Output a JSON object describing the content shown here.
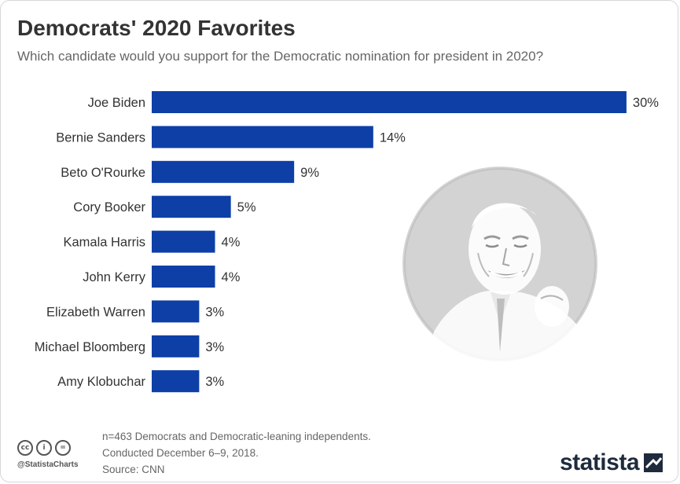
{
  "header": {
    "title": "Democrats' 2020 Favorites",
    "subtitle": "Which candidate would you support for the Democratic nomination for president in 2020?"
  },
  "chart_data": {
    "type": "bar",
    "orientation": "horizontal",
    "categories": [
      "Joe Biden",
      "Bernie Sanders",
      "Beto O'Rourke",
      "Cory Booker",
      "Kamala Harris",
      "John Kerry",
      "Elizabeth Warren",
      "Michael Bloomberg",
      "Amy Klobuchar"
    ],
    "values": [
      30,
      14,
      9,
      5,
      4,
      4,
      3,
      3,
      3
    ],
    "value_labels": [
      "30%",
      "14%",
      "9%",
      "5%",
      "4%",
      "4%",
      "3%",
      "3%",
      "3%"
    ],
    "unit": "%",
    "bar_color": "#0d3fa6",
    "grid": false,
    "legend": "none"
  },
  "footer": {
    "note_line1": "n=463 Democrats and Democratic-leaning independents.",
    "note_line2": "Conducted December 6–9, 2018.",
    "source": "Source: CNN",
    "handle": "@StatistaCharts",
    "cc_icons": [
      "cc-icon",
      "attribution-icon",
      "no-derivatives-icon"
    ],
    "logo_text": "statista"
  },
  "illustration": {
    "icon": "joe-biden-portrait-illustration",
    "circle_color": "#d3d3d3"
  }
}
